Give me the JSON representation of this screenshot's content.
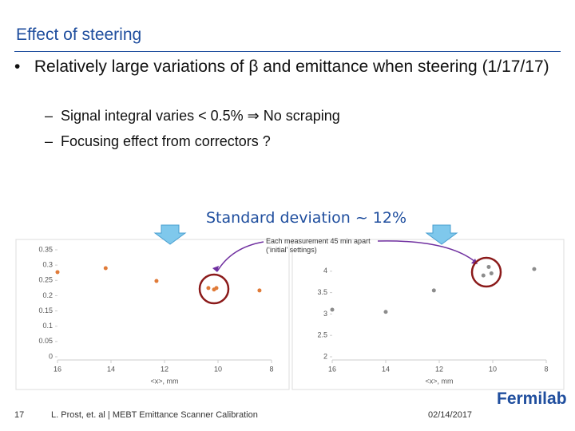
{
  "header": {
    "title": "Effect of steering"
  },
  "bullets": [
    {
      "text": "Relatively large variations of β and emittance when steering (1/17/17)",
      "subs": [
        "Signal integral varies < 0.5% ⇒ No scraping",
        "Focusing effect from correctors ?"
      ]
    }
  ],
  "annotations": [
    "Standard deviation ~ 12%",
    "Each measurement 45 min apart (‘initial’ settings)"
  ],
  "footer": {
    "page": "17",
    "text": "L. Prost, et. al | MEBT Emittance Scanner Calibration",
    "date": "02/14/2017",
    "logo": "Fermilab"
  },
  "chart_data": [
    {
      "type": "scatter",
      "x_label": "<x>, mm",
      "color": "#e07b39",
      "x": [
        16,
        14.2,
        12.3,
        10.36,
        10.15,
        10.06,
        8.45
      ],
      "values": [
        0.277,
        0.29,
        0.248,
        0.225,
        0.22,
        0.225,
        0.217
      ],
      "xlim": [
        16,
        8
      ],
      "xticks": [
        16,
        14,
        12,
        10,
        8
      ],
      "ylim": [
        0,
        0.35
      ],
      "yticks": [
        0,
        0.05,
        0.1,
        0.15,
        0.2,
        0.25,
        0.3,
        0.35
      ]
    },
    {
      "type": "scatter",
      "x_label": "<x>, mm",
      "color": "#8c8c8c",
      "x": [
        16,
        14,
        12.2,
        10.15,
        10.35,
        10.05,
        8.45
      ],
      "values": [
        3.1,
        3.05,
        3.55,
        4.1,
        3.9,
        3.95,
        4.05
      ],
      "xlim": [
        16,
        8
      ],
      "xticks": [
        16,
        14,
        12,
        10,
        8
      ],
      "ylim": [
        2,
        4.5
      ],
      "yticks": [
        2,
        2.5,
        3,
        3.5,
        4
      ]
    }
  ]
}
